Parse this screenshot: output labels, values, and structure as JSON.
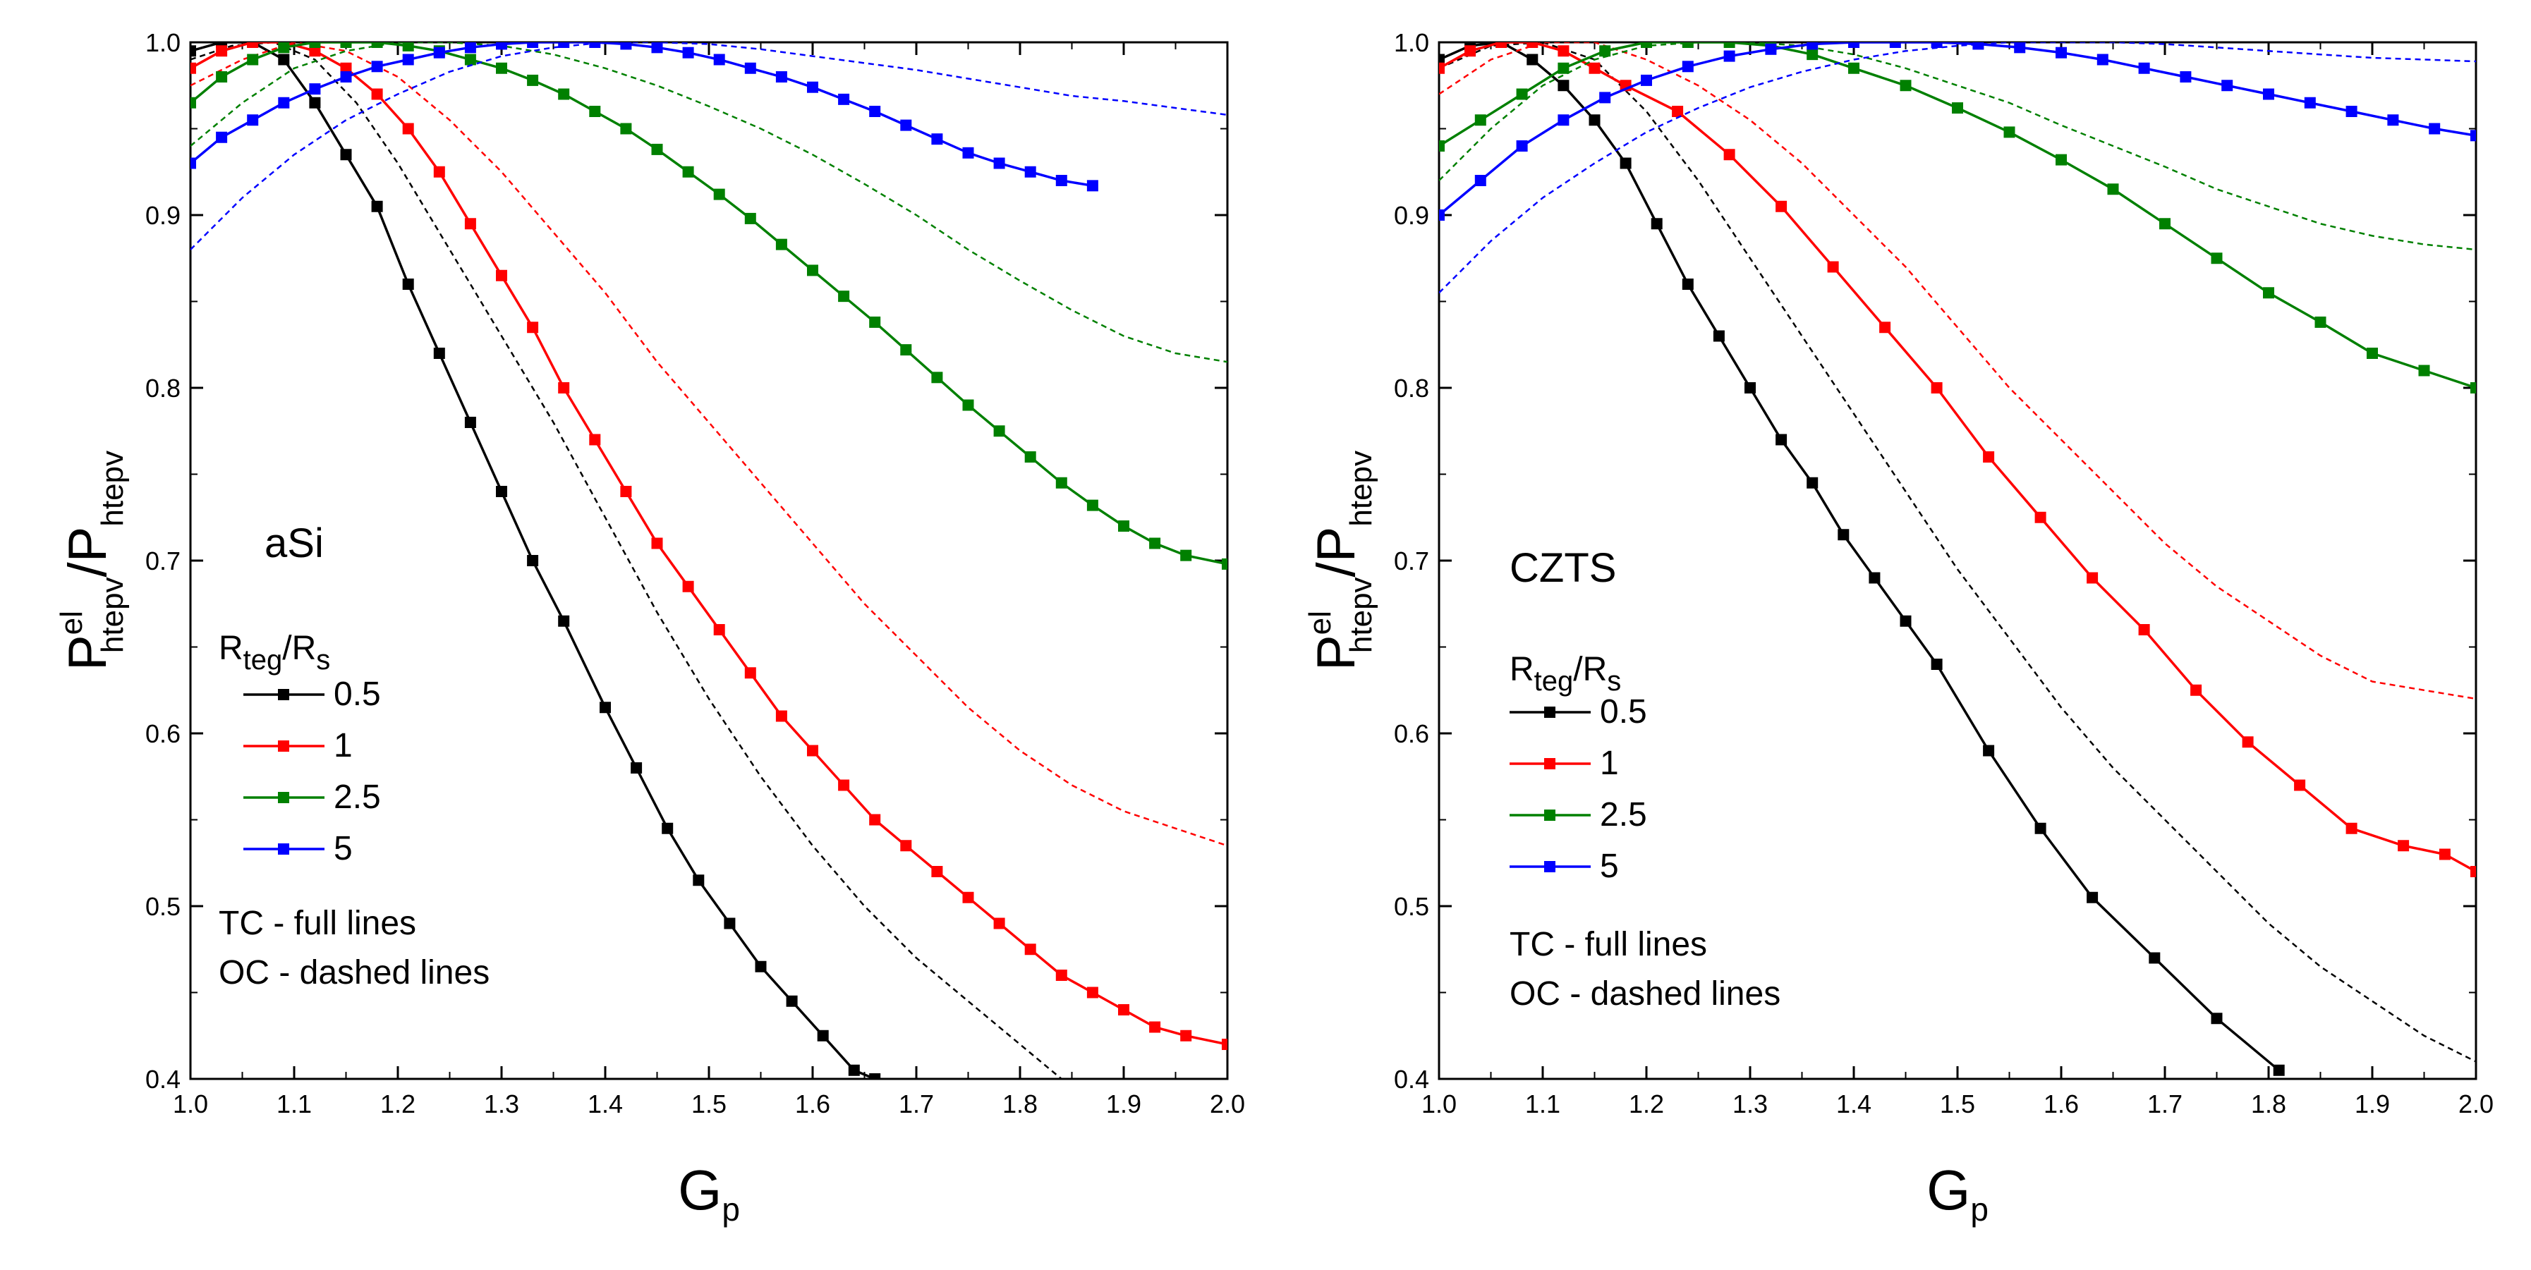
{
  "chart_data": [
    {
      "type": "line",
      "material_label": "aSi",
      "xlabel": "G",
      "xlabel_sub": "p",
      "ylabel": {
        "p1": "P",
        "p1_sup": "el",
        "p1_sub": "htepv",
        "slash": "/",
        "p2": "P",
        "p2_sub": "htepv"
      },
      "xlim": [
        1.0,
        2.0
      ],
      "ylim": [
        0.4,
        1.0
      ],
      "x_ticks": [
        "1.0",
        "1.1",
        "1.2",
        "1.3",
        "1.4",
        "1.5",
        "1.6",
        "1.7",
        "1.8",
        "1.9",
        "2.0"
      ],
      "y_ticks": [
        "0.4",
        "0.5",
        "0.6",
        "0.7",
        "0.8",
        "0.9",
        "1.0"
      ],
      "legend_title": {
        "main": "R",
        "sub1": "teg",
        "slash": "/R",
        "sub2": "s"
      },
      "notes": [
        "TC - full lines",
        "OC - dashed lines"
      ],
      "series": [
        {
          "name": "0.5",
          "color": "#000000",
          "style": "solid-markers",
          "x": [
            1.0,
            1.03,
            1.06,
            1.09,
            1.12,
            1.15,
            1.18,
            1.21,
            1.24,
            1.27,
            1.3,
            1.33,
            1.36,
            1.4,
            1.43,
            1.46,
            1.49,
            1.52,
            1.55,
            1.58,
            1.61,
            1.64,
            1.66
          ],
          "y": [
            0.995,
            1.0,
            1.0,
            0.99,
            0.965,
            0.935,
            0.905,
            0.86,
            0.82,
            0.78,
            0.74,
            0.7,
            0.665,
            0.615,
            0.58,
            0.545,
            0.515,
            0.49,
            0.465,
            0.445,
            0.425,
            0.405,
            0.4
          ]
        },
        {
          "name": "0.5",
          "color": "#000000",
          "style": "dashed",
          "x": [
            1.0,
            1.04,
            1.08,
            1.12,
            1.16,
            1.2,
            1.25,
            1.3,
            1.35,
            1.4,
            1.45,
            1.5,
            1.55,
            1.6,
            1.65,
            1.7,
            1.75,
            1.8,
            1.84
          ],
          "y": [
            0.99,
            0.998,
            1.0,
            0.99,
            0.965,
            0.93,
            0.88,
            0.83,
            0.78,
            0.725,
            0.67,
            0.62,
            0.575,
            0.535,
            0.5,
            0.47,
            0.445,
            0.42,
            0.4
          ]
        },
        {
          "name": "1",
          "color": "#ff0000",
          "style": "solid-markers",
          "x": [
            1.0,
            1.03,
            1.06,
            1.09,
            1.12,
            1.15,
            1.18,
            1.21,
            1.24,
            1.27,
            1.3,
            1.33,
            1.36,
            1.39,
            1.42,
            1.45,
            1.48,
            1.51,
            1.54,
            1.57,
            1.6,
            1.63,
            1.66,
            1.69,
            1.72,
            1.75,
            1.78,
            1.81,
            1.84,
            1.87,
            1.9,
            1.93,
            1.96,
            2.0
          ],
          "y": [
            0.985,
            0.995,
            1.0,
            1.0,
            0.995,
            0.985,
            0.97,
            0.95,
            0.925,
            0.895,
            0.865,
            0.835,
            0.8,
            0.77,
            0.74,
            0.71,
            0.685,
            0.66,
            0.635,
            0.61,
            0.59,
            0.57,
            0.55,
            0.535,
            0.52,
            0.505,
            0.49,
            0.475,
            0.46,
            0.45,
            0.44,
            0.43,
            0.425,
            0.42
          ]
        },
        {
          "name": "1",
          "color": "#ff0000",
          "style": "dashed",
          "x": [
            1.0,
            1.05,
            1.1,
            1.15,
            1.2,
            1.25,
            1.3,
            1.35,
            1.4,
            1.45,
            1.5,
            1.55,
            1.6,
            1.65,
            1.7,
            1.75,
            1.8,
            1.85,
            1.9,
            1.95,
            2.0
          ],
          "y": [
            0.975,
            0.99,
            1.0,
            0.995,
            0.98,
            0.955,
            0.925,
            0.89,
            0.855,
            0.815,
            0.78,
            0.745,
            0.71,
            0.675,
            0.645,
            0.615,
            0.59,
            0.57,
            0.555,
            0.545,
            0.535
          ]
        },
        {
          "name": "2.5",
          "color": "#008000",
          "style": "solid-markers",
          "x": [
            1.0,
            1.03,
            1.06,
            1.09,
            1.12,
            1.15,
            1.18,
            1.21,
            1.24,
            1.27,
            1.3,
            1.33,
            1.36,
            1.39,
            1.42,
            1.45,
            1.48,
            1.51,
            1.54,
            1.57,
            1.6,
            1.63,
            1.66,
            1.69,
            1.72,
            1.75,
            1.78,
            1.81,
            1.84,
            1.87,
            1.9,
            1.93,
            1.96,
            2.0
          ],
          "y": [
            0.965,
            0.98,
            0.99,
            0.997,
            1.0,
            1.0,
            1.0,
            0.998,
            0.995,
            0.99,
            0.985,
            0.978,
            0.97,
            0.96,
            0.95,
            0.938,
            0.925,
            0.912,
            0.898,
            0.883,
            0.868,
            0.853,
            0.838,
            0.822,
            0.806,
            0.79,
            0.775,
            0.76,
            0.745,
            0.732,
            0.72,
            0.71,
            0.703,
            0.698
          ]
        },
        {
          "name": "2.5",
          "color": "#008000",
          "style": "dashed",
          "x": [
            1.0,
            1.05,
            1.1,
            1.15,
            1.2,
            1.25,
            1.3,
            1.35,
            1.4,
            1.45,
            1.5,
            1.55,
            1.6,
            1.65,
            1.7,
            1.75,
            1.8,
            1.85,
            1.9,
            1.95,
            2.0
          ],
          "y": [
            0.94,
            0.965,
            0.985,
            0.995,
            1.0,
            1.0,
            0.998,
            0.993,
            0.985,
            0.975,
            0.963,
            0.95,
            0.935,
            0.918,
            0.9,
            0.88,
            0.862,
            0.845,
            0.83,
            0.82,
            0.815
          ]
        },
        {
          "name": "5",
          "color": "#0000ff",
          "style": "solid-markers",
          "x": [
            1.0,
            1.03,
            1.06,
            1.09,
            1.12,
            1.15,
            1.18,
            1.21,
            1.24,
            1.27,
            1.3,
            1.33,
            1.36,
            1.39,
            1.42,
            1.45,
            1.48,
            1.51,
            1.54,
            1.57,
            1.6,
            1.63,
            1.66,
            1.69,
            1.72,
            1.75,
            1.78,
            1.81,
            1.84,
            1.87
          ],
          "y": [
            0.93,
            0.945,
            0.955,
            0.965,
            0.973,
            0.98,
            0.986,
            0.99,
            0.994,
            0.997,
            0.999,
            1.0,
            1.0,
            1.0,
            0.999,
            0.997,
            0.994,
            0.99,
            0.985,
            0.98,
            0.974,
            0.967,
            0.96,
            0.952,
            0.944,
            0.936,
            0.93,
            0.925,
            0.92,
            0.917
          ]
        },
        {
          "name": "5",
          "color": "#0000ff",
          "style": "dashed",
          "x": [
            1.0,
            1.05,
            1.1,
            1.15,
            1.2,
            1.25,
            1.3,
            1.35,
            1.4,
            1.45,
            1.5,
            1.55,
            1.6,
            1.65,
            1.7,
            1.75,
            1.8,
            1.85,
            1.9,
            1.95,
            2.0
          ],
          "y": [
            0.88,
            0.91,
            0.935,
            0.955,
            0.97,
            0.983,
            0.992,
            0.997,
            1.0,
            1.0,
            0.999,
            0.996,
            0.992,
            0.988,
            0.984,
            0.979,
            0.974,
            0.969,
            0.966,
            0.962,
            0.958
          ]
        }
      ]
    },
    {
      "type": "line",
      "material_label": "CZTS",
      "xlabel": "G",
      "xlabel_sub": "p",
      "ylabel": {
        "p1": "P",
        "p1_sup": "el",
        "p1_sub": "htepv",
        "slash": "/",
        "p2": "P",
        "p2_sub": "htepv"
      },
      "xlim": [
        1.0,
        2.0
      ],
      "ylim": [
        0.4,
        1.0
      ],
      "x_ticks": [
        "1.0",
        "1.1",
        "1.2",
        "1.3",
        "1.4",
        "1.5",
        "1.6",
        "1.7",
        "1.8",
        "1.9",
        "2.0"
      ],
      "y_ticks": [
        "0.4",
        "0.5",
        "0.6",
        "0.7",
        "0.8",
        "0.9",
        "1.0"
      ],
      "legend_title": {
        "main": "R",
        "sub1": "teg",
        "slash": "/R",
        "sub2": "s"
      },
      "notes": [
        "TC - full lines",
        "OC - dashed lines"
      ],
      "series": [
        {
          "name": "0.5",
          "color": "#000000",
          "style": "solid-markers",
          "x": [
            1.0,
            1.03,
            1.06,
            1.09,
            1.12,
            1.15,
            1.18,
            1.21,
            1.24,
            1.27,
            1.3,
            1.33,
            1.36,
            1.39,
            1.42,
            1.45,
            1.48,
            1.53,
            1.58,
            1.63,
            1.69,
            1.75,
            1.81
          ],
          "y": [
            0.99,
            0.998,
            1.0,
            0.99,
            0.975,
            0.955,
            0.93,
            0.895,
            0.86,
            0.83,
            0.8,
            0.77,
            0.745,
            0.715,
            0.69,
            0.665,
            0.64,
            0.59,
            0.545,
            0.505,
            0.47,
            0.435,
            0.405
          ]
        },
        {
          "name": "0.5",
          "color": "#000000",
          "style": "dashed",
          "x": [
            1.0,
            1.05,
            1.1,
            1.15,
            1.2,
            1.25,
            1.3,
            1.35,
            1.4,
            1.45,
            1.5,
            1.55,
            1.6,
            1.65,
            1.7,
            1.75,
            1.8,
            1.85,
            1.9,
            1.95,
            2.0
          ],
          "y": [
            0.985,
            0.998,
            1.0,
            0.99,
            0.96,
            0.92,
            0.875,
            0.83,
            0.785,
            0.74,
            0.695,
            0.655,
            0.615,
            0.58,
            0.55,
            0.52,
            0.49,
            0.465,
            0.445,
            0.425,
            0.41
          ]
        },
        {
          "name": "1",
          "color": "#ff0000",
          "style": "solid-markers",
          "x": [
            1.0,
            1.03,
            1.06,
            1.09,
            1.12,
            1.15,
            1.18,
            1.23,
            1.28,
            1.33,
            1.38,
            1.43,
            1.48,
            1.53,
            1.58,
            1.63,
            1.68,
            1.73,
            1.78,
            1.83,
            1.88,
            1.93,
            1.97,
            2.0
          ],
          "y": [
            0.985,
            0.995,
            1.0,
            1.0,
            0.995,
            0.985,
            0.975,
            0.96,
            0.935,
            0.905,
            0.87,
            0.835,
            0.8,
            0.76,
            0.725,
            0.69,
            0.66,
            0.625,
            0.595,
            0.57,
            0.545,
            0.535,
            0.53,
            0.52
          ]
        },
        {
          "name": "1",
          "color": "#ff0000",
          "style": "dashed",
          "x": [
            1.0,
            1.05,
            1.1,
            1.15,
            1.2,
            1.25,
            1.3,
            1.35,
            1.4,
            1.45,
            1.5,
            1.55,
            1.6,
            1.65,
            1.7,
            1.75,
            1.8,
            1.85,
            1.9,
            1.95,
            2.0
          ],
          "y": [
            0.97,
            0.99,
            1.0,
            1.0,
            0.99,
            0.975,
            0.955,
            0.93,
            0.9,
            0.87,
            0.835,
            0.8,
            0.77,
            0.74,
            0.71,
            0.685,
            0.665,
            0.645,
            0.63,
            0.625,
            0.62
          ]
        },
        {
          "name": "2.5",
          "color": "#008000",
          "style": "solid-markers",
          "x": [
            1.0,
            1.04,
            1.08,
            1.12,
            1.16,
            1.2,
            1.24,
            1.28,
            1.32,
            1.36,
            1.4,
            1.45,
            1.5,
            1.55,
            1.6,
            1.65,
            1.7,
            1.75,
            1.8,
            1.85,
            1.9,
            1.95,
            2.0
          ],
          "y": [
            0.94,
            0.955,
            0.97,
            0.985,
            0.995,
            1.0,
            1.0,
            1.0,
            0.998,
            0.993,
            0.985,
            0.975,
            0.962,
            0.948,
            0.932,
            0.915,
            0.895,
            0.875,
            0.855,
            0.838,
            0.82,
            0.81,
            0.8
          ]
        },
        {
          "name": "2.5",
          "color": "#008000",
          "style": "dashed",
          "x": [
            1.0,
            1.05,
            1.1,
            1.15,
            1.2,
            1.25,
            1.3,
            1.35,
            1.4,
            1.45,
            1.5,
            1.55,
            1.6,
            1.65,
            1.7,
            1.75,
            1.8,
            1.85,
            1.9,
            1.95,
            2.0
          ],
          "y": [
            0.92,
            0.95,
            0.975,
            0.99,
            0.998,
            1.0,
            1.0,
            0.998,
            0.993,
            0.985,
            0.975,
            0.965,
            0.952,
            0.94,
            0.928,
            0.915,
            0.905,
            0.895,
            0.888,
            0.883,
            0.88
          ]
        },
        {
          "name": "5",
          "color": "#0000ff",
          "style": "solid-markers",
          "x": [
            1.0,
            1.04,
            1.08,
            1.12,
            1.16,
            1.2,
            1.24,
            1.28,
            1.32,
            1.36,
            1.4,
            1.44,
            1.48,
            1.52,
            1.56,
            1.6,
            1.64,
            1.68,
            1.72,
            1.76,
            1.8,
            1.84,
            1.88,
            1.92,
            1.96,
            2.0
          ],
          "y": [
            0.9,
            0.92,
            0.94,
            0.955,
            0.968,
            0.978,
            0.986,
            0.992,
            0.996,
            0.999,
            1.0,
            1.0,
            1.0,
            0.999,
            0.997,
            0.994,
            0.99,
            0.985,
            0.98,
            0.975,
            0.97,
            0.965,
            0.96,
            0.955,
            0.95,
            0.946
          ]
        },
        {
          "name": "5",
          "color": "#0000ff",
          "style": "dashed",
          "x": [
            1.0,
            1.05,
            1.1,
            1.15,
            1.2,
            1.25,
            1.3,
            1.35,
            1.4,
            1.45,
            1.5,
            1.55,
            1.6,
            1.65,
            1.7,
            1.75,
            1.8,
            1.85,
            1.9,
            1.95,
            2.0
          ],
          "y": [
            0.855,
            0.885,
            0.91,
            0.93,
            0.948,
            0.962,
            0.974,
            0.983,
            0.99,
            0.995,
            0.998,
            1.0,
            1.0,
            1.0,
            0.999,
            0.997,
            0.995,
            0.993,
            0.991,
            0.99,
            0.989
          ]
        }
      ]
    }
  ]
}
